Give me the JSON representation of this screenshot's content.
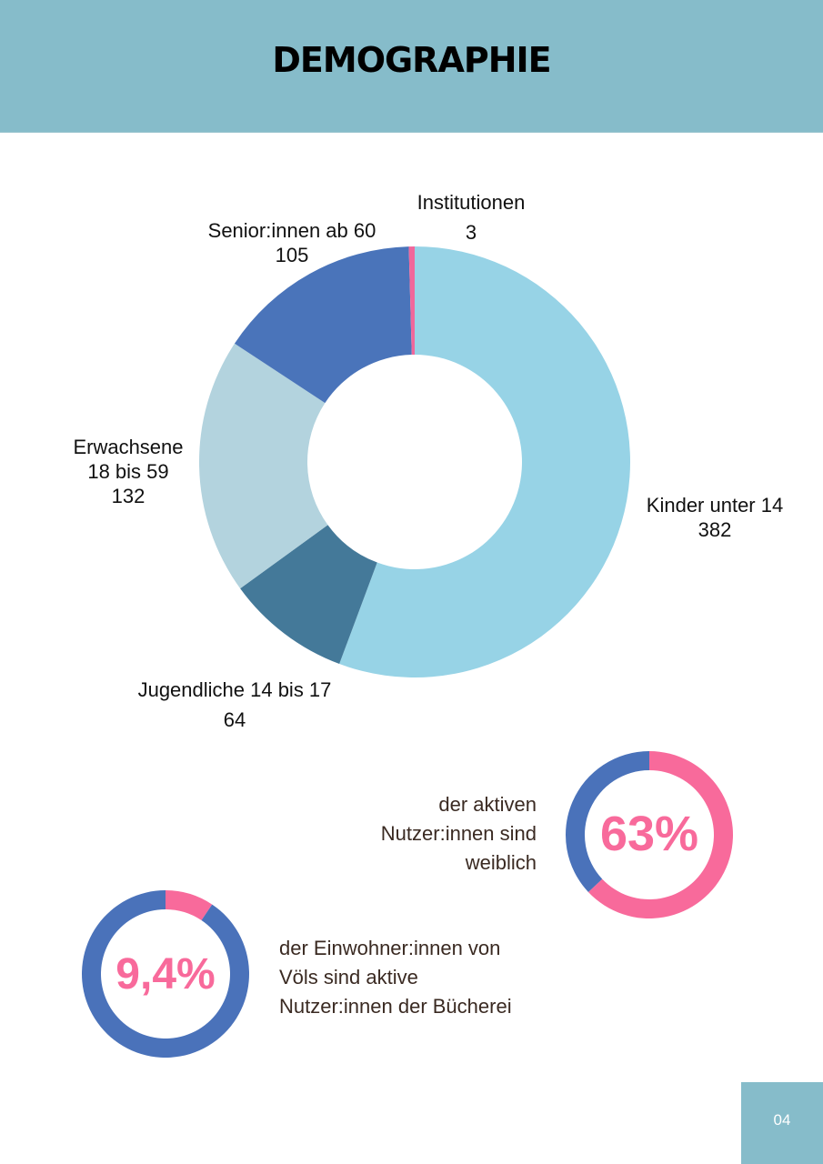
{
  "header": {
    "title": "DEMOGRAPHIE"
  },
  "chart_data": [
    {
      "type": "pie",
      "categories": [
        "Kinder unter 14",
        "Jugendliche 14 bis 17",
        "Erwachsene 18 bis 59",
        "Senior:innen ab 60",
        "Institutionen"
      ],
      "values": [
        382,
        64,
        132,
        105,
        3
      ],
      "colors": [
        "#97D3E6",
        "#447999",
        "#B3D3DE",
        "#4A74BA",
        "#F1679B"
      ],
      "labels": [
        {
          "lines": [
            "Kinder unter 14",
            "382"
          ]
        },
        {
          "lines": [
            "Jugendliche 14 bis 17",
            "64"
          ]
        },
        {
          "lines": [
            "Erwachsene",
            "18 bis 59",
            "132"
          ]
        },
        {
          "lines": [
            "Senior:innen ab 60",
            "105"
          ]
        },
        {
          "lines": [
            "Institutionen",
            "3"
          ]
        }
      ]
    },
    {
      "type": "pie",
      "values": [
        63,
        37
      ],
      "colors": [
        "#F86A9B",
        "#4A72BA"
      ],
      "value_label": "63%",
      "text_lines": [
        "der aktiven",
        "Nutzer:innen sind",
        "weiblich"
      ]
    },
    {
      "type": "pie",
      "values": [
        9.4,
        90.6
      ],
      "colors": [
        "#F86A9B",
        "#4A72BA"
      ],
      "value_label": "9,4%",
      "text_lines": [
        "der Einwohner:innen von",
        "Völs sind aktive",
        "Nutzer:innen der Bücherei"
      ]
    }
  ],
  "footer": {
    "page_number": "04"
  }
}
